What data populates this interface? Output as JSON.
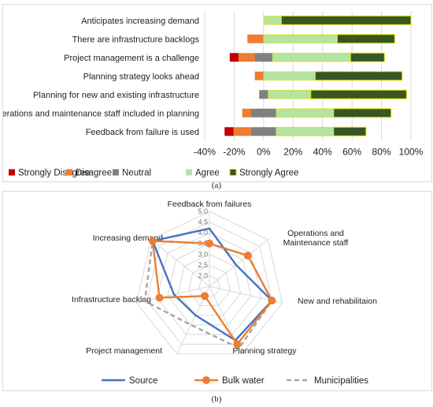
{
  "captions": {
    "a": "(a)",
    "b": "(b)"
  },
  "chart_data": [
    {
      "type": "bar",
      "stacked": "diverging",
      "categories": [
        "Anticipates increasing demand",
        "There are infrastructure backlogs",
        "Project management is a challenge",
        "Planning strategy looks ahead",
        "Planning for new and existing infrastructure",
        "Operations and maintenance staff included in planning",
        "Feedback from failure is used"
      ],
      "series": [
        {
          "name": "Strongly Disagree",
          "color": "#c00000",
          "values": [
            0,
            0,
            6,
            0,
            0,
            0,
            6
          ]
        },
        {
          "name": "Disagree",
          "color": "#ed7d31",
          "values": [
            0,
            11,
            11,
            6,
            0,
            6,
            12
          ]
        },
        {
          "name": "Neutral",
          "color": "#808080",
          "values": [
            0,
            0,
            12,
            0,
            6,
            17,
            17
          ]
        },
        {
          "name": "Agree",
          "color": "#b4e3a2",
          "values": [
            12,
            50,
            53,
            35,
            29,
            39,
            39
          ]
        },
        {
          "name": "Strongly Agree",
          "color": "#375623",
          "values": [
            88,
            39,
            23,
            59,
            65,
            39,
            22
          ]
        }
      ],
      "xticks": [
        "-40%",
        "-20%",
        "0%",
        "20%",
        "40%",
        "60%",
        "80%",
        "100%"
      ],
      "xlim": [
        -40,
        100
      ],
      "legend": "bottom"
    },
    {
      "type": "radar",
      "axes": [
        "Feedback from failures",
        "Operations and Maintenance staff",
        "New and  rehabilitaion",
        "Planning strategy",
        "Project management",
        "Infrastructure backlog",
        "Increasing demand"
      ],
      "rticks": [
        "5.0",
        "4.5",
        "4.0",
        "3.5",
        "3.0",
        "2.5",
        "2.0"
      ],
      "rlim": [
        1.5,
        5.0
      ],
      "series": [
        {
          "name": "Source",
          "color": "#4472c4",
          "style": "solid",
          "values": [
            4.2,
            3.1,
            4.5,
            4.3,
            3.0,
            3.2,
            4.9
          ]
        },
        {
          "name": "Bulk water",
          "color": "#ed7d31",
          "style": "solid-marker",
          "values": [
            3.5,
            3.8,
            4.5,
            4.5,
            2.0,
            3.9,
            4.9
          ]
        },
        {
          "name": "Municipalities",
          "color": "#a6a6a6",
          "style": "dashed",
          "values": [
            3.5,
            3.8,
            4.5,
            4.7,
            3.5,
            4.6,
            4.9
          ]
        }
      ],
      "legend": "bottom"
    }
  ]
}
